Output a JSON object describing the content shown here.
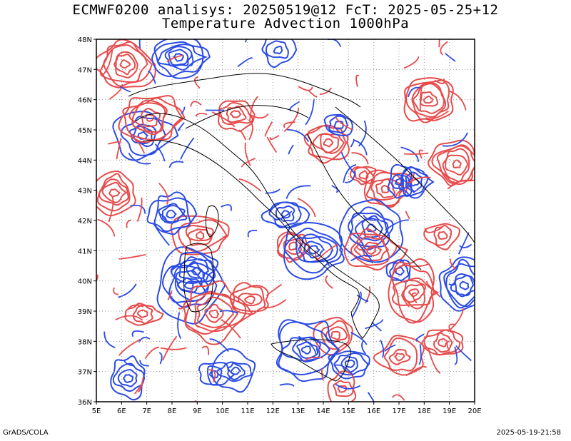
{
  "title": {
    "line1": "ECMWF0200 analisys: 20250519@12 FcT: 2025-05-25+12",
    "line2": "Temperature Advection 1000hPa"
  },
  "map": {
    "lon_labels": [
      "5E",
      "6E",
      "7E",
      "8E",
      "9E",
      "10E",
      "11E",
      "12E",
      "13E",
      "14E",
      "15E",
      "16E",
      "17E",
      "18E",
      "19E",
      "20E"
    ],
    "lat_labels": [
      "48N",
      "47N",
      "46N",
      "45N",
      "44N",
      "43N",
      "42N",
      "41N",
      "40N",
      "39N",
      "38N",
      "37N",
      "36N"
    ],
    "lon_range": [
      5,
      20
    ],
    "lat_range": [
      36,
      48
    ],
    "grid": "dotted",
    "colors": {
      "positive_contours": "#e84a4a",
      "negative_contours": "#2a4be6",
      "coastlines": "#000000",
      "grid": "#9a9a9a"
    }
  },
  "footer": {
    "left": "GrADS/COLA",
    "right": "2025-05-19-21:58"
  }
}
